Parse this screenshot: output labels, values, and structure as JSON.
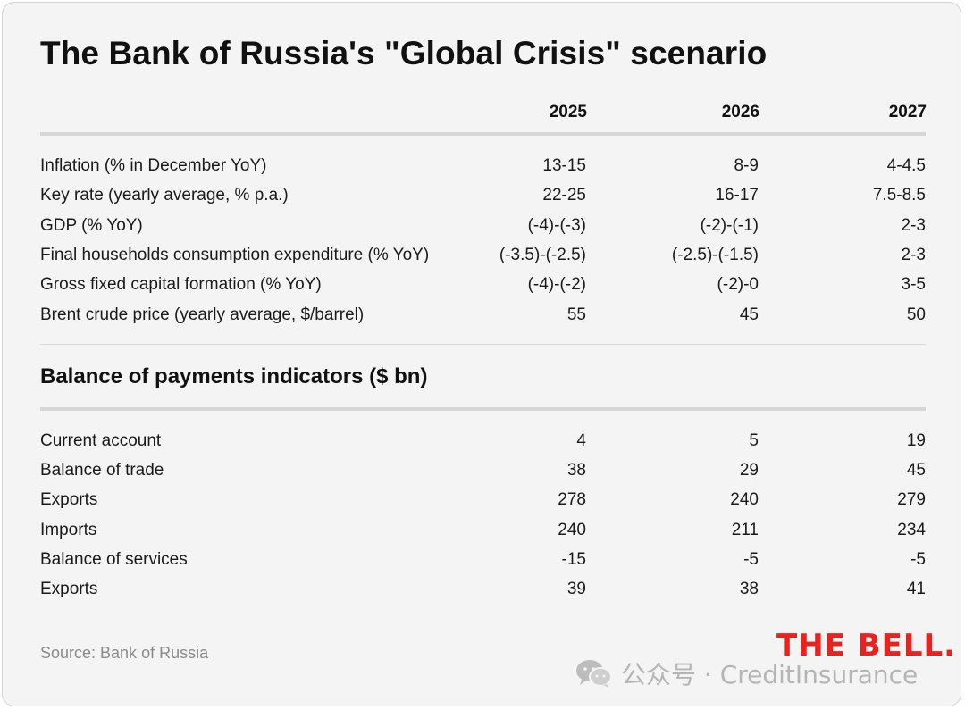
{
  "title": "The Bank of Russia's \"Global Crisis\" scenario",
  "years": [
    "2025",
    "2026",
    "2027"
  ],
  "scenario_rows": [
    {
      "label": "Inflation (% in December YoY)",
      "values": [
        "13-15",
        "8-9",
        "4-4.5"
      ]
    },
    {
      "label": "Key rate (yearly average, % p.a.)",
      "values": [
        "22-25",
        "16-17",
        "7.5-8.5"
      ]
    },
    {
      "label": "GDP (% YoY)",
      "values": [
        "(-4)-(-3)",
        "(-2)-(-1)",
        "2-3"
      ]
    },
    {
      "label": "Final households consumption expenditure (% YoY)",
      "values": [
        "(-3.5)-(-2.5)",
        "(-2.5)-(-1.5)",
        "2-3"
      ]
    },
    {
      "label": "Gross fixed capital formation (% YoY)",
      "values": [
        "(-4)-(-2)",
        "(-2)-0",
        "3-5"
      ]
    },
    {
      "label": "Brent crude price (yearly average, $/barrel)",
      "values": [
        "55",
        "45",
        "50"
      ]
    }
  ],
  "bop_title": "Balance of payments indicators ($ bn)",
  "bop_rows": [
    {
      "label": "Current account",
      "values": [
        "4",
        "5",
        "19"
      ]
    },
    {
      "label": "Balance of trade",
      "values": [
        "38",
        "29",
        "45"
      ]
    },
    {
      "label": "Exports",
      "values": [
        "278",
        "240",
        "279"
      ]
    },
    {
      "label": "Imports",
      "values": [
        "240",
        "211",
        "234"
      ]
    },
    {
      "label": "Balance of services",
      "values": [
        "-15",
        "-5",
        "-5"
      ]
    },
    {
      "label": "Exports",
      "values": [
        "39",
        "38",
        "41"
      ]
    }
  ],
  "source": "Source: Bank of Russia",
  "brand": "THE BELL.",
  "watermark": {
    "icon": "wechat-icon",
    "text": "公众号 · CreditInsurance"
  },
  "colors": {
    "background": "#f4f4f4",
    "brand": "#e8231f",
    "source_text": "#8a8a8a",
    "watermark": "#b5b5b5"
  }
}
